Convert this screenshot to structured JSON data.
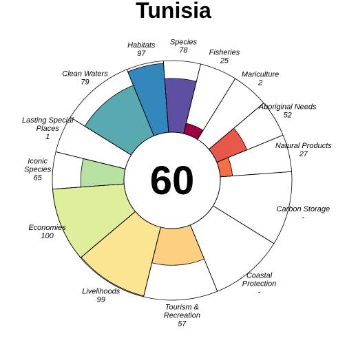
{
  "chart_data": {
    "type": "flower",
    "title": "Tunisia",
    "center_value": "60",
    "max_value": 100,
    "petals": [
      {
        "label": [
          "Fisheries"
        ],
        "value_text": "25",
        "value": 25,
        "weight": 0.5,
        "color": "#9e0142"
      },
      {
        "label": [
          "Mariculture"
        ],
        "value_text": "2",
        "value": 2,
        "weight": 0.5,
        "color": "#d53e4f"
      },
      {
        "label": [
          "Aboriginal Needs"
        ],
        "value_text": "52",
        "value": 52,
        "weight": 0.5,
        "color": "#e8574a"
      },
      {
        "label": [
          "Natural Products"
        ],
        "value_text": "27",
        "value": 27,
        "weight": 0.5,
        "color": "#f47044"
      },
      {
        "label": [
          "Carbon Storage"
        ],
        "value_text": "-",
        "value": null,
        "weight": 1,
        "color": "#ffffff"
      },
      {
        "label": [
          "Coastal",
          "Protection"
        ],
        "value_text": "-",
        "value": null,
        "weight": 1,
        "color": "#ffffff"
      },
      {
        "label": [
          "Tourism &",
          "Recreation"
        ],
        "value_text": "57",
        "value": 57,
        "weight": 1,
        "color": "#fdcf81"
      },
      {
        "label": [
          "Livelihoods"
        ],
        "value_text": "99",
        "value": 99,
        "weight": 1,
        "color": "#fbe592"
      },
      {
        "label": [
          "Economies"
        ],
        "value_text": "100",
        "value": 100,
        "weight": 1,
        "color": "#dfee9b"
      },
      {
        "label": [
          "Iconic",
          "Species"
        ],
        "value_text": "65",
        "value": 65,
        "weight": 0.5,
        "color": "#b7e1a1"
      },
      {
        "label": [
          "Lasting Special",
          "Places"
        ],
        "value_text": "1",
        "value": 1,
        "weight": 0.5,
        "color": "#a2d9a4"
      },
      {
        "label": [
          "Clean Waters"
        ],
        "value_text": "79",
        "value": 79,
        "weight": 1,
        "color": "#58aab0"
      },
      {
        "label": [
          "Habitats"
        ],
        "value_text": "97",
        "value": 97,
        "weight": 0.5,
        "color": "#3288bd"
      },
      {
        "label": [
          "Species"
        ],
        "value_text": "78",
        "value": 78,
        "weight": 0.5,
        "color": "#5e4fa2"
      }
    ]
  }
}
